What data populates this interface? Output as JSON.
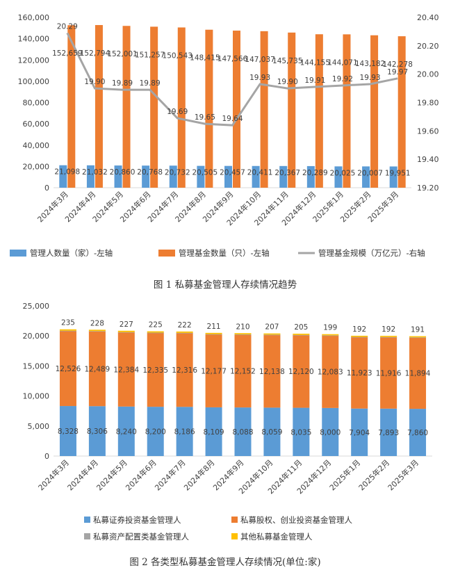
{
  "chart_data": [
    {
      "type": "bar",
      "caption": "图 1 私募基金管理人存续情况趋势",
      "categories": [
        "2024年3月",
        "2024年4月",
        "2024年5月",
        "2024年6月",
        "2024年7月",
        "2024年8月",
        "2024年9月",
        "2024年10月",
        "2024年11月",
        "2024年12月",
        "2025年1月",
        "2025年2月",
        "2025年3月"
      ],
      "left_axis": {
        "min": 0,
        "max": 160000,
        "ticks": [
          "0",
          "20,000",
          "40,000",
          "60,000",
          "80,000",
          "100,000",
          "120,000",
          "140,000",
          "160,000"
        ]
      },
      "right_axis": {
        "min": 19.2,
        "max": 20.4,
        "ticks": [
          "19.20",
          "19.40",
          "19.60",
          "19.80",
          "20.00",
          "20.20",
          "20.40"
        ]
      },
      "series": [
        {
          "name": "管理人数量（家）-左轴",
          "kind": "bar",
          "axis": "left",
          "color": "#5B9BD5",
          "values": [
            21098,
            21032,
            20860,
            20768,
            20732,
            20505,
            20457,
            20411,
            20367,
            20289,
            20025,
            20007,
            19951
          ],
          "labels": [
            "21,098",
            "21,032",
            "20,860",
            "20,768",
            "20,732",
            "20,505",
            "20,457",
            "20,411",
            "20,367",
            "20,289",
            "20,025",
            "20,007",
            "19,951"
          ]
        },
        {
          "name": "管理基金数量（只）-左轴",
          "kind": "bar",
          "axis": "left",
          "color": "#ED7D31",
          "values": [
            152659,
            152794,
            152001,
            151257,
            150543,
            148415,
            147566,
            147037,
            145735,
            144155,
            144071,
            143182,
            142278
          ],
          "labels": [
            "152,659",
            "152,794",
            "152,001",
            "151,257",
            "150,543",
            "148,415",
            "147,566",
            "147,037",
            "145,735",
            "144,155",
            "144,071",
            "143,182",
            "142,278"
          ]
        },
        {
          "name": "管理基金规模（万亿元）-右轴",
          "kind": "line",
          "axis": "right",
          "color": "#A5A5A5",
          "values": [
            20.29,
            19.9,
            19.89,
            19.89,
            19.69,
            19.65,
            19.64,
            19.93,
            19.9,
            19.91,
            19.92,
            19.93,
            19.97
          ],
          "labels": [
            "20.29",
            "19.90",
            "19.89",
            "19.89",
            "19.69",
            "19.65",
            "19.64",
            "19.93",
            "19.90",
            "19.91",
            "19.92",
            "19.93",
            "19.97"
          ]
        }
      ]
    },
    {
      "type": "stacked-bar",
      "caption": "图 2 各类型私募基金管理人存续情况(单位:家)",
      "categories": [
        "2024年3月",
        "2024年4月",
        "2024年5月",
        "2024年6月",
        "2024年7月",
        "2024年8月",
        "2024年9月",
        "2024年10月",
        "2024年11月",
        "2024年12月",
        "2025年1月",
        "2025年2月",
        "2025年3月"
      ],
      "y_axis": {
        "min": 0,
        "max": 25000,
        "ticks": [
          "0",
          "5,000",
          "10,000",
          "15,000",
          "20,000",
          "25,000"
        ]
      },
      "series": [
        {
          "name": "私募证券投资基金管理人",
          "color": "#5B9BD5",
          "values": [
            8328,
            8306,
            8240,
            8200,
            8186,
            8109,
            8088,
            8059,
            8035,
            8000,
            7904,
            7893,
            7860
          ],
          "labels": [
            "8,328",
            "8,306",
            "8,240",
            "8,200",
            "8,186",
            "8,109",
            "8,088",
            "8,059",
            "8,035",
            "8,000",
            "7,904",
            "7,893",
            "7,860"
          ]
        },
        {
          "name": "私募股权、创业投资基金管理人",
          "color": "#ED7D31",
          "values": [
            12526,
            12489,
            12384,
            12335,
            12316,
            12177,
            12152,
            12138,
            12120,
            12083,
            11923,
            11916,
            11894
          ],
          "labels": [
            "12,526",
            "12,489",
            "12,384",
            "12,335",
            "12,316",
            "12,177",
            "12,152",
            "12,138",
            "12,120",
            "12,083",
            "11,923",
            "11,916",
            "11,894"
          ]
        },
        {
          "name": "私募资产配置类基金管理人",
          "color": "#A5A5A5",
          "values": [
            9,
            9,
            9,
            8,
            8,
            8,
            7,
            7,
            7,
            7,
            6,
            6,
            6
          ],
          "labels": []
        },
        {
          "name": "其他私募基金管理人",
          "color": "#FFC000",
          "values": [
            235,
            228,
            227,
            225,
            222,
            211,
            210,
            207,
            205,
            199,
            192,
            192,
            191
          ],
          "labels": [
            "235",
            "228",
            "227",
            "225",
            "222",
            "211",
            "210",
            "207",
            "205",
            "199",
            "192",
            "192",
            "191"
          ]
        }
      ]
    }
  ]
}
